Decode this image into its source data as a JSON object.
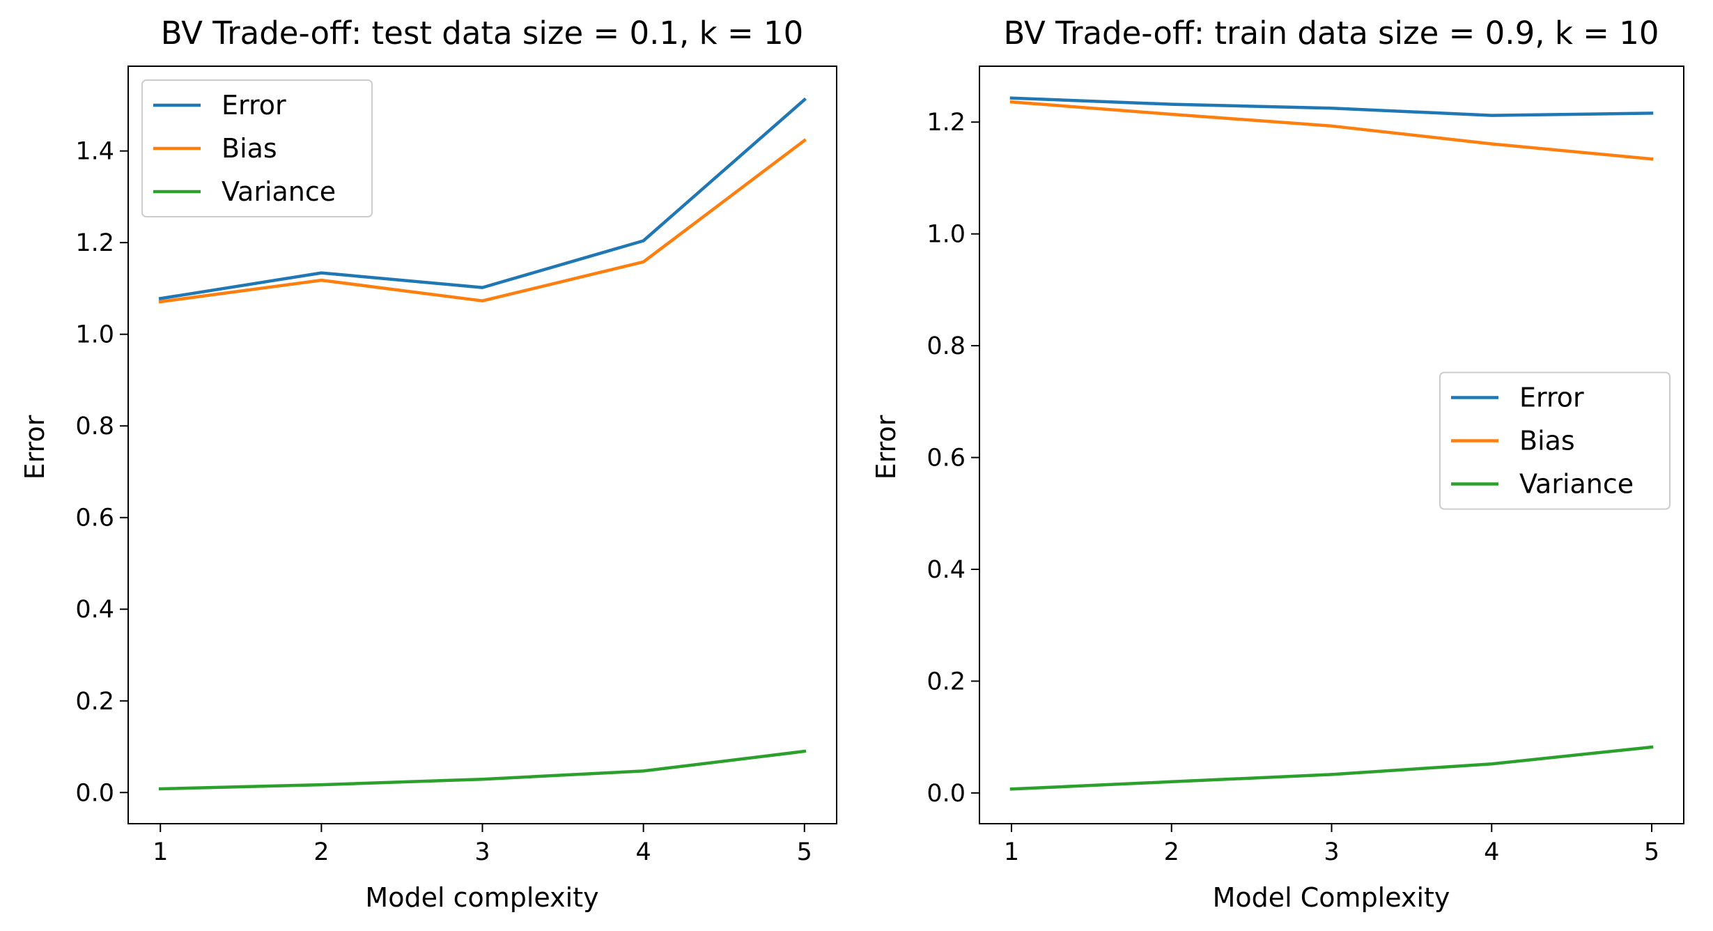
{
  "colors": {
    "error": "#1f77b4",
    "bias": "#ff7f0e",
    "variance": "#2ca02c",
    "axis": "#000000",
    "legend_border": "#cccccc"
  },
  "chart_data": [
    {
      "type": "line",
      "title": "BV Trade-off: test data size = 0.1, k = 10",
      "xlabel": "Model complexity",
      "ylabel": "Error",
      "x": [
        1,
        2,
        3,
        4,
        5
      ],
      "xticks": [
        "1",
        "2",
        "3",
        "4",
        "5"
      ],
      "xlim": [
        0.8,
        5.2
      ],
      "ylim": [
        -0.068,
        1.585
      ],
      "yticks": [
        "0.0",
        "0.2",
        "0.4",
        "0.6",
        "0.8",
        "1.0",
        "1.2",
        "1.4"
      ],
      "ytick_values": [
        0.0,
        0.2,
        0.4,
        0.6,
        0.8,
        1.0,
        1.2,
        1.4
      ],
      "grid": false,
      "legend_position": "upper left",
      "series": [
        {
          "name": "Error",
          "color_key": "error",
          "values": [
            1.078,
            1.134,
            1.102,
            1.204,
            1.512
          ]
        },
        {
          "name": "Bias",
          "color_key": "bias",
          "values": [
            1.071,
            1.118,
            1.073,
            1.158,
            1.423
          ]
        },
        {
          "name": "Variance",
          "color_key": "variance",
          "values": [
            0.008,
            0.017,
            0.029,
            0.047,
            0.09
          ]
        }
      ]
    },
    {
      "type": "line",
      "title": "BV Trade-off: train data size = 0.9, k = 10",
      "xlabel": "Model Complexity",
      "ylabel": "Error",
      "x": [
        1,
        2,
        3,
        4,
        5
      ],
      "xticks": [
        "1",
        "2",
        "3",
        "4",
        "5"
      ],
      "xlim": [
        0.8,
        5.2
      ],
      "ylim": [
        -0.055,
        1.3
      ],
      "yticks": [
        "0.0",
        "0.2",
        "0.4",
        "0.6",
        "0.8",
        "1.0",
        "1.2"
      ],
      "ytick_values": [
        0.0,
        0.2,
        0.4,
        0.6,
        0.8,
        1.0,
        1.2
      ],
      "grid": false,
      "legend_position": "center right",
      "series": [
        {
          "name": "Error",
          "color_key": "error",
          "values": [
            1.243,
            1.232,
            1.225,
            1.212,
            1.216
          ]
        },
        {
          "name": "Bias",
          "color_key": "bias",
          "values": [
            1.236,
            1.214,
            1.193,
            1.161,
            1.134
          ]
        },
        {
          "name": "Variance",
          "color_key": "variance",
          "values": [
            0.007,
            0.02,
            0.033,
            0.052,
            0.082
          ]
        }
      ]
    }
  ]
}
